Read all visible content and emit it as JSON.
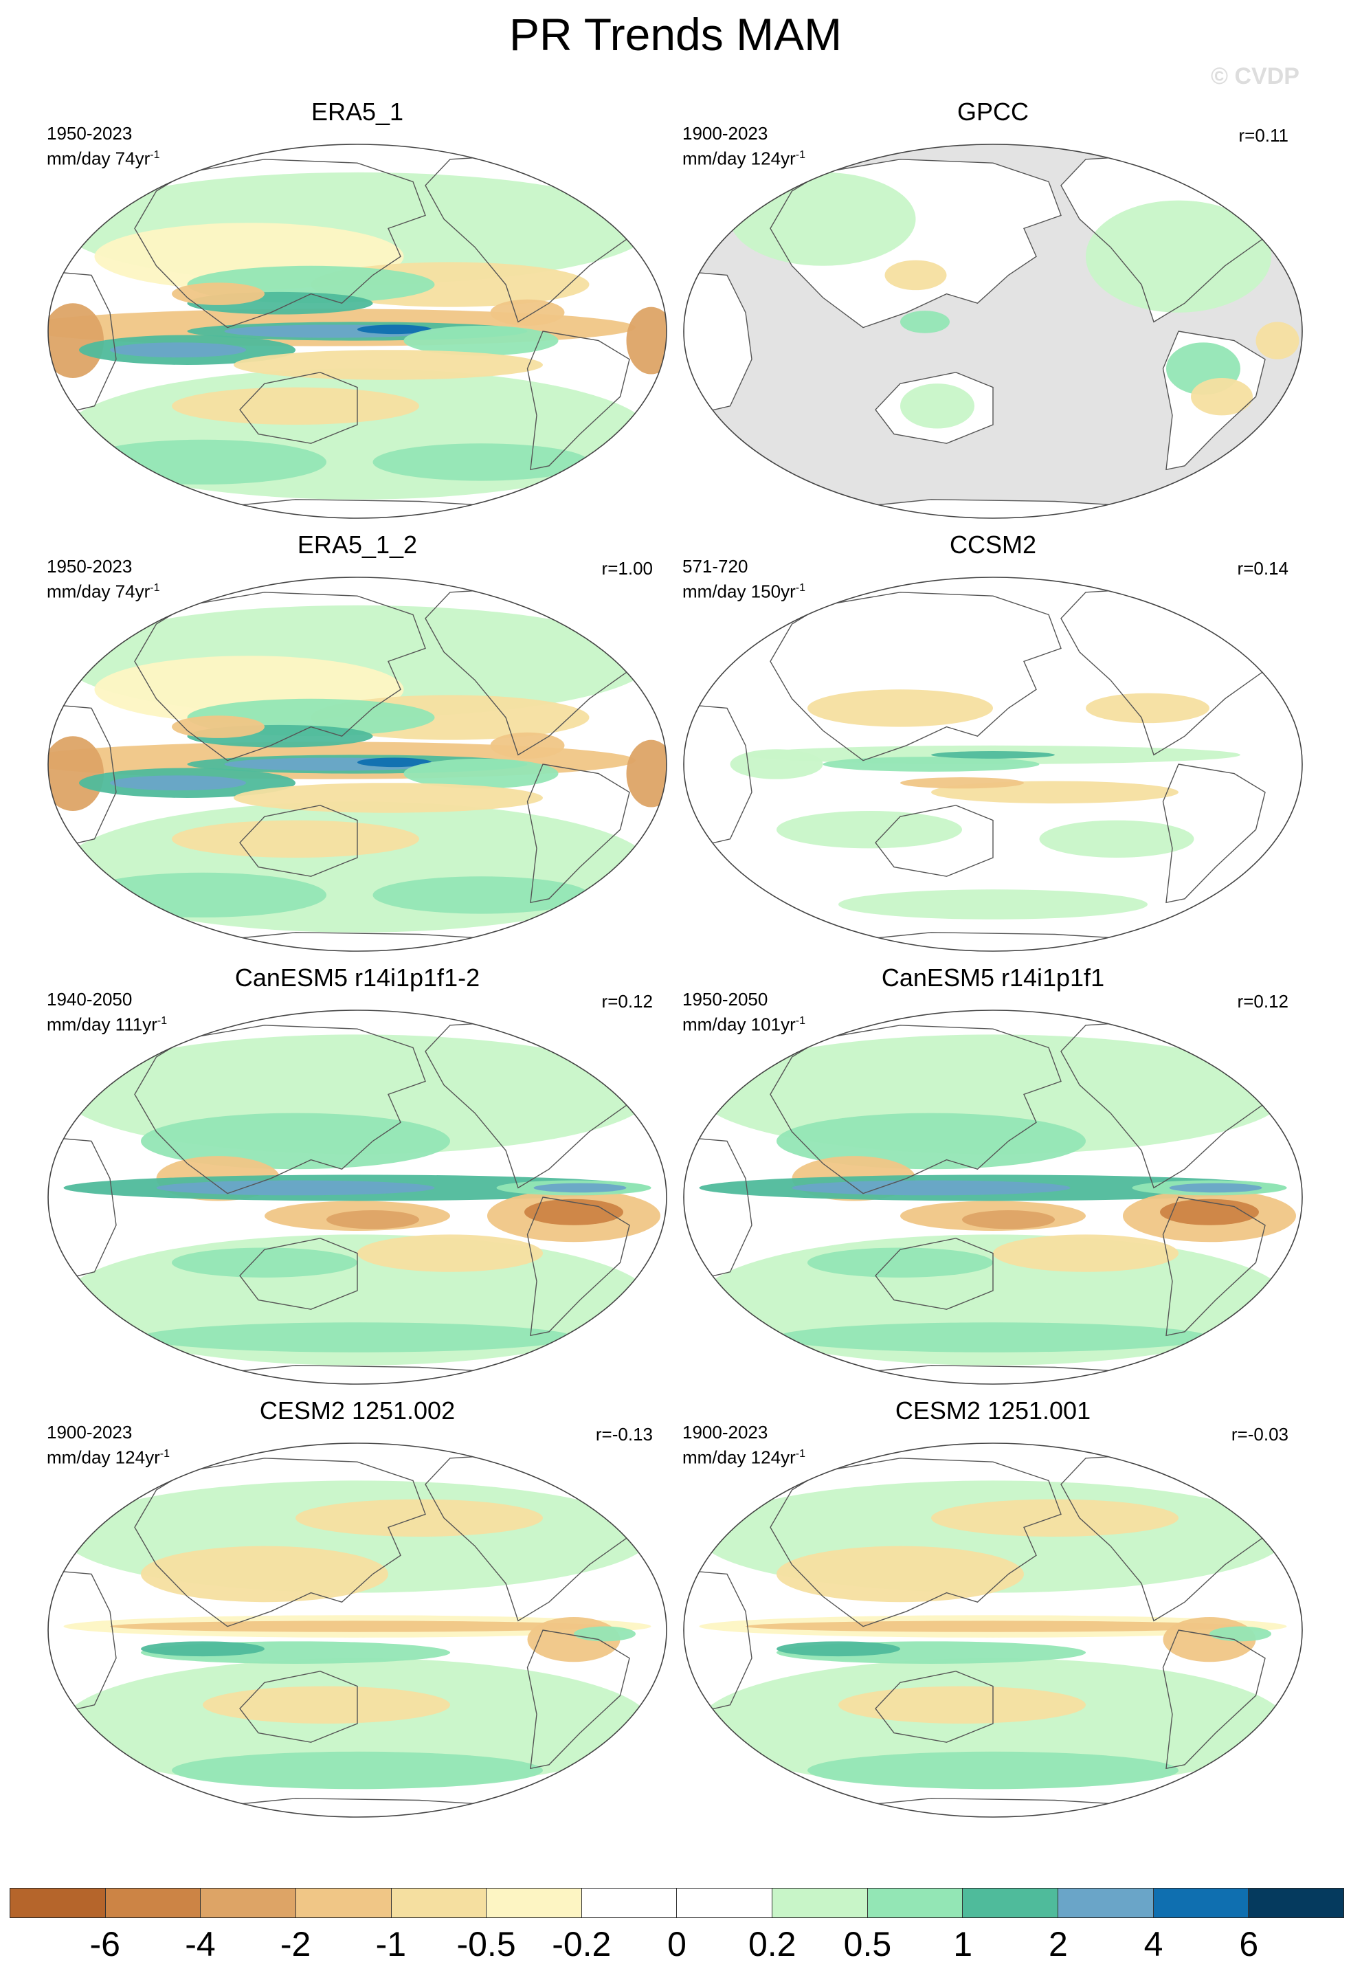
{
  "title": "PR Trends MAM",
  "watermark": "© CVDP",
  "panels": [
    {
      "title": "ERA5_1",
      "period": "1950-2023",
      "units": "mm/day 74yr",
      "exp": "-1",
      "corr": "",
      "style": "obs_era5",
      "fill_land_only": false
    },
    {
      "title": "GPCC",
      "period": "1900-2023",
      "units": "mm/day 124yr",
      "exp": "-1",
      "corr": "r=0.11",
      "style": "gpcc",
      "fill_land_only": true
    },
    {
      "title": "ERA5_1_2",
      "period": "1950-2023",
      "units": "mm/day 74yr",
      "exp": "-1",
      "corr": "r=1.00",
      "style": "obs_era5",
      "fill_land_only": false
    },
    {
      "title": "CCSM2",
      "period": "571-720",
      "units": "mm/day 150yr",
      "exp": "-1",
      "corr": "r=0.14",
      "style": "weak",
      "fill_land_only": false
    },
    {
      "title": "CanESM5 r14i1p1f1-2",
      "period": "1940-2050",
      "units": "mm/day 111yr",
      "exp": "-1",
      "corr": "r=0.12",
      "style": "canesm",
      "fill_land_only": false
    },
    {
      "title": "CanESM5 r14i1p1f1",
      "period": "1950-2050",
      "units": "mm/day 101yr",
      "exp": "-1",
      "corr": "r=0.12",
      "style": "canesm",
      "fill_land_only": false
    },
    {
      "title": "CESM2 1251.002",
      "period": "1900-2023",
      "units": "mm/day 124yr",
      "exp": "-1",
      "corr": "r=-0.13",
      "style": "cesm",
      "fill_land_only": false
    },
    {
      "title": "CESM2 1251.001",
      "period": "1900-2023",
      "units": "mm/day 124yr",
      "exp": "-1",
      "corr": "r=-0.03",
      "style": "cesm",
      "fill_land_only": false
    }
  ],
  "colorbar": {
    "colors": [
      "#b5652b",
      "#cc8445",
      "#dda466",
      "#f0c686",
      "#f5dfa0",
      "#fdf5c3",
      "#ffffff",
      "#ffffff",
      "#c8f5c8",
      "#93e6b5",
      "#4fbb9b",
      "#6aa5c8",
      "#0f6fb0",
      "#053a5e"
    ],
    "labels": [
      "-6",
      "-4",
      "-2",
      "-1",
      "-0.5",
      "-0.2",
      "0",
      "0.2",
      "0.5",
      "1",
      "2",
      "4",
      "6"
    ]
  }
}
